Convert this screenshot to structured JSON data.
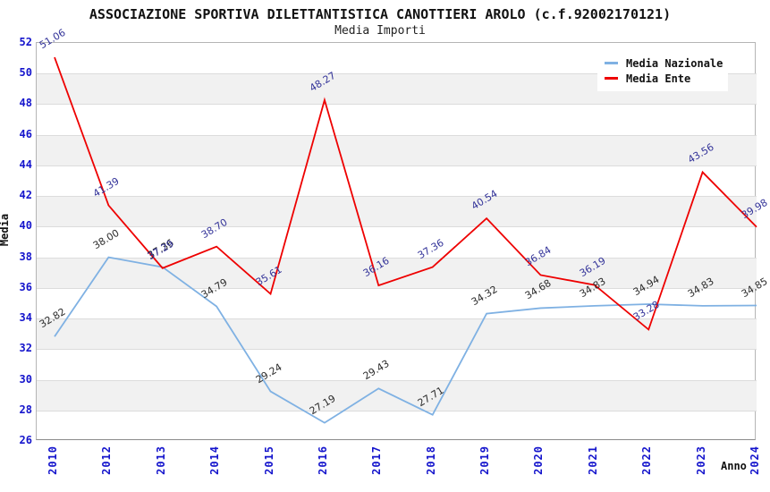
{
  "chart_data": {
    "type": "line",
    "title": "ASSOCIAZIONE SPORTIVA DILETTANTISTICA CANOTTIERI AROLO (c.f.92002170121)",
    "subtitle": "Media Importi",
    "xlabel": "Anno",
    "ylabel": "Media",
    "categories": [
      "2010",
      "2012",
      "2013",
      "2014",
      "2015",
      "2016",
      "2017",
      "2018",
      "2019",
      "2020",
      "2021",
      "2022",
      "2023",
      "2024"
    ],
    "series": [
      {
        "name": "Media Nazionale",
        "color": "#7fb1e3",
        "label_color": "#2b2b2b",
        "values": [
          32.82,
          38.0,
          37.36,
          34.79,
          29.24,
          27.19,
          29.43,
          27.71,
          34.32,
          34.68,
          34.83,
          34.94,
          34.83,
          34.85
        ]
      },
      {
        "name": "Media Ente",
        "color": "#ee0000",
        "label_color": "#333399",
        "values": [
          51.06,
          41.39,
          37.29,
          38.7,
          35.61,
          48.27,
          36.16,
          37.36,
          40.54,
          36.84,
          36.19,
          33.28,
          43.56,
          39.98
        ]
      }
    ],
    "ylim": [
      26,
      52
    ],
    "ytick_step": 2,
    "grid": true,
    "band_fill": true,
    "legend_position": "top-right",
    "colors": {
      "axis_tick": "#1414cc",
      "grid_line": "#dcdcdc",
      "band": "#f1f1f1",
      "plot_border": "#b5b5b5"
    }
  }
}
